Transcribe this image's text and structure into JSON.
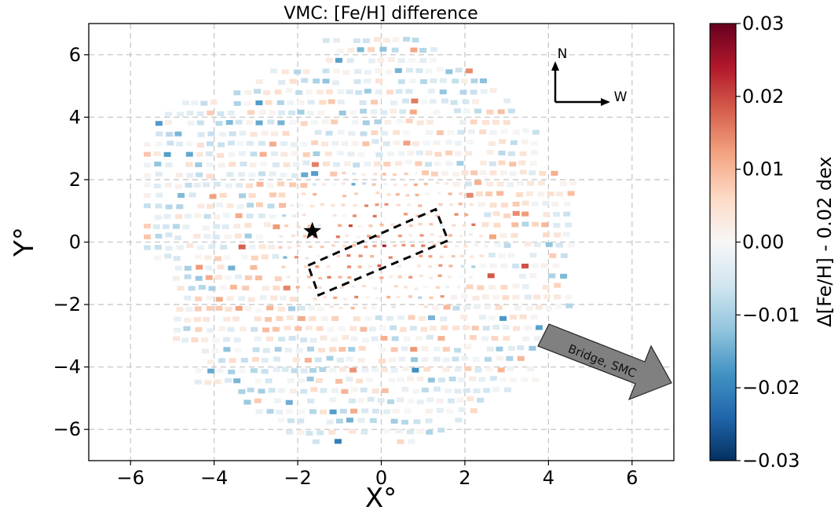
{
  "chart_data": {
    "type": "heatmap",
    "title": "VMC: [Fe/H] difference",
    "xlabel": "X°",
    "ylabel": "Y°",
    "xlim": [
      -7,
      7
    ],
    "ylim": [
      -7,
      7
    ],
    "xticks": [
      -6,
      -4,
      -2,
      0,
      2,
      4,
      6
    ],
    "xtick_labels": [
      "−6",
      "−4",
      "−2",
      "0",
      "2",
      "4",
      "6"
    ],
    "yticks": [
      6,
      4,
      2,
      0,
      -2,
      -4,
      -6
    ],
    "ytick_labels": [
      "6",
      "4",
      "2",
      "0",
      "−2",
      "−4",
      "−6"
    ],
    "grid": true,
    "x_inverted": false,
    "colorbar": {
      "label": "Δ[Fe/H] - 0.02 dex",
      "range": [
        -0.03,
        0.03
      ],
      "colormap": "RdBu_r",
      "ticks": [
        0.03,
        0.02,
        0.01,
        0.0,
        -0.01,
        -0.02,
        -0.03
      ],
      "tick_labels": [
        "0.03",
        "0.02",
        "0.01",
        "0.00",
        "−0.01",
        "−0.02",
        "−0.03"
      ]
    },
    "annotations": {
      "compass": {
        "north": "N",
        "west": "W"
      },
      "arrow_label": "Bridge, SMC",
      "star_marker": {
        "x": -1.65,
        "y": 0.35
      },
      "bar_box_corners": [
        [
          -1.75,
          -0.75
        ],
        [
          1.3,
          1.05
        ],
        [
          1.6,
          0.05
        ],
        [
          -1.5,
          -1.7
        ]
      ]
    },
    "field": {
      "x_extent": [
        -5.6,
        4.6
      ],
      "y_extent": [
        -6.4,
        6.6
      ],
      "row_spacing_deg": 0.33,
      "cell_size_deg": 0.17,
      "value_trend": "positive (red) values concentrated near the bar and centre; negative (blue) values toward the outskirts"
    }
  },
  "colors": {
    "axis": "#000000",
    "grid": "#c8c8c8",
    "arrow_fill": "#808080",
    "cmap_stops": [
      "#053061",
      "#2166ac",
      "#4393c3",
      "#92c5de",
      "#d1e5f0",
      "#f7f7f7",
      "#fddbc7",
      "#f4a582",
      "#d6604d",
      "#b2182b",
      "#67001f"
    ]
  }
}
